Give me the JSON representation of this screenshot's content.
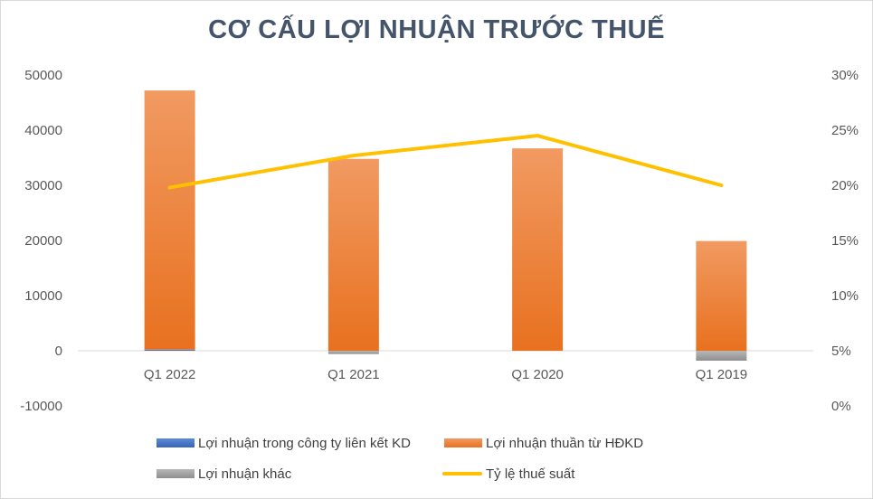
{
  "chart_data": {
    "type": "bar",
    "title": "CƠ CẤU LỢI NHUẬN TRƯỚC THUẾ",
    "categories": [
      "Q1 2022",
      "Q1 2021",
      "Q1 2020",
      "Q1 2019"
    ],
    "stacked": true,
    "series": [
      {
        "name": "Lợi nhuận trong công ty liên kết KD",
        "type": "bar",
        "axis": "left",
        "color": "#4472c4",
        "values": [
          200,
          0,
          0,
          0
        ]
      },
      {
        "name": "Lợi nhuận thuần từ HĐKD",
        "type": "bar",
        "axis": "left",
        "color": "#ed7d31",
        "values": [
          47000,
          34800,
          36700,
          19900
        ]
      },
      {
        "name": "Lợi nhuận khác",
        "type": "bar",
        "axis": "left",
        "color": "#a5a5a5",
        "values": [
          0,
          -600,
          0,
          -1800
        ]
      },
      {
        "name": "Tỷ lệ thuế suất",
        "type": "line",
        "axis": "right",
        "color": "#ffc000",
        "values": [
          0.198,
          0.227,
          0.245,
          0.2
        ]
      }
    ],
    "y_left": {
      "min": -10000,
      "max": 50000,
      "step": 10000,
      "tick_labels": [
        "-10000",
        "0",
        "10000",
        "20000",
        "30000",
        "40000",
        "50000"
      ]
    },
    "y_right": {
      "min": 0,
      "max": 0.3,
      "step": 0.05,
      "tick_labels": [
        "0%",
        "5%",
        "10%",
        "15%",
        "20%",
        "25%",
        "30%"
      ]
    },
    "grid": false,
    "legend": "bottom"
  }
}
